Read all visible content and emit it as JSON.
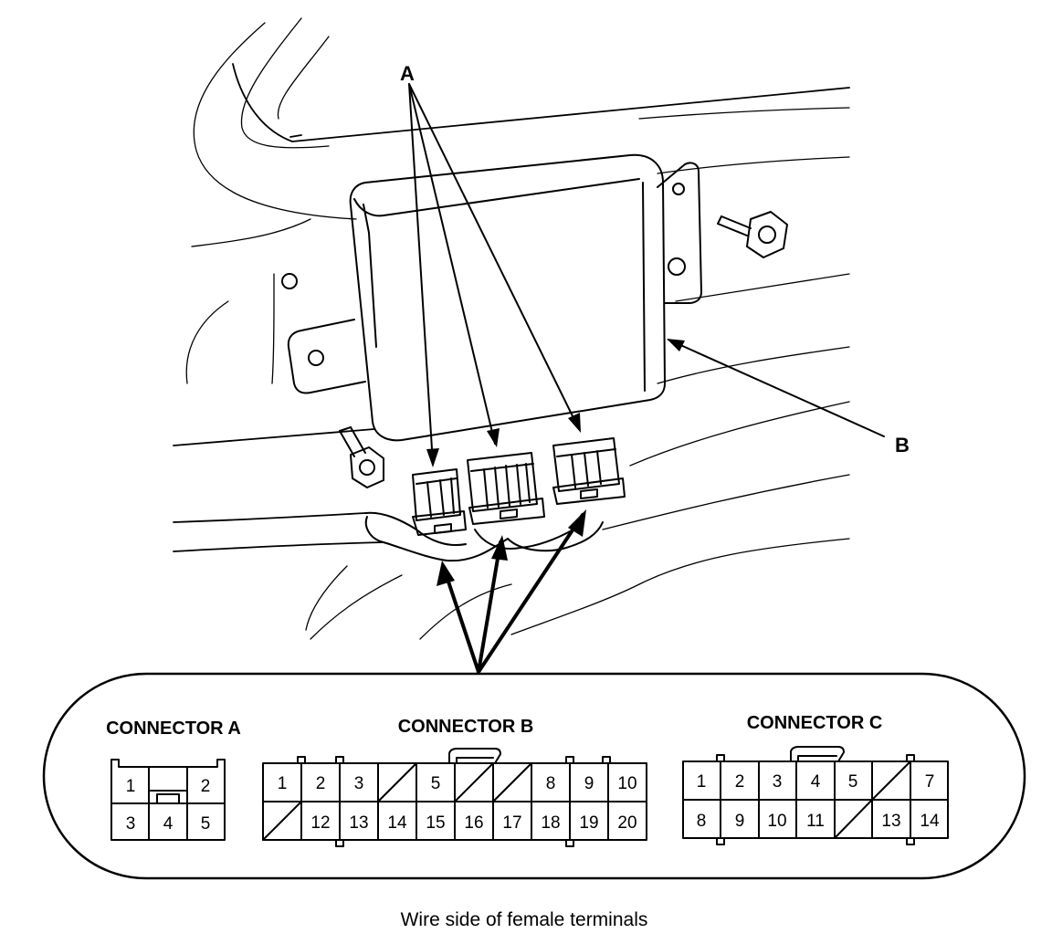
{
  "callouts": {
    "a": "A",
    "b": "B"
  },
  "panel": {
    "caption": "Wire side of female terminals",
    "connector_a": {
      "title": "CONNECTOR A",
      "row1": [
        "1",
        "",
        "2"
      ],
      "row2": [
        "3",
        "4",
        "5"
      ]
    },
    "connector_b": {
      "title": "CONNECTOR B",
      "row1": [
        "1",
        "2",
        "3",
        "",
        "5",
        "",
        "",
        "8",
        "9",
        "10"
      ],
      "row2": [
        "",
        "12",
        "13",
        "14",
        "15",
        "16",
        "17",
        "18",
        "19",
        "20"
      ]
    },
    "connector_c": {
      "title": "CONNECTOR C",
      "row1": [
        "1",
        "2",
        "3",
        "4",
        "5",
        "",
        "7"
      ],
      "row2": [
        "8",
        "9",
        "10",
        "11",
        "",
        "13",
        "14"
      ]
    }
  }
}
